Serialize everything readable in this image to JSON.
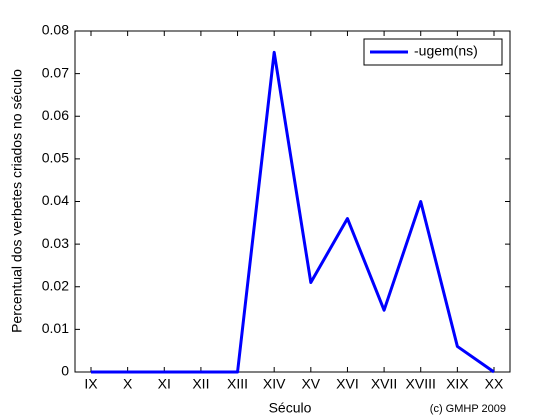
{
  "chart_data": {
    "type": "line",
    "categories": [
      "IX",
      "X",
      "XI",
      "XII",
      "XIII",
      "XIV",
      "XV",
      "XVI",
      "XVII",
      "XVIII",
      "XIX",
      "XX"
    ],
    "series": [
      {
        "name": "-ugem(ns)",
        "color": "#0000ff",
        "values": [
          0,
          0,
          0,
          0,
          0,
          0.075,
          0.021,
          0.036,
          0.0145,
          0.04,
          0.006,
          0
        ]
      }
    ],
    "xlabel": "Século",
    "ylabel": "Percentual dos verbetes criados no século",
    "annotation": "(c) GMHP 2009",
    "ylim": [
      0,
      0.08
    ],
    "yticks": [
      0,
      0.01,
      0.02,
      0.03,
      0.04,
      0.05,
      0.06,
      0.07,
      0.08
    ],
    "grid": false,
    "legend": "upper-right"
  }
}
